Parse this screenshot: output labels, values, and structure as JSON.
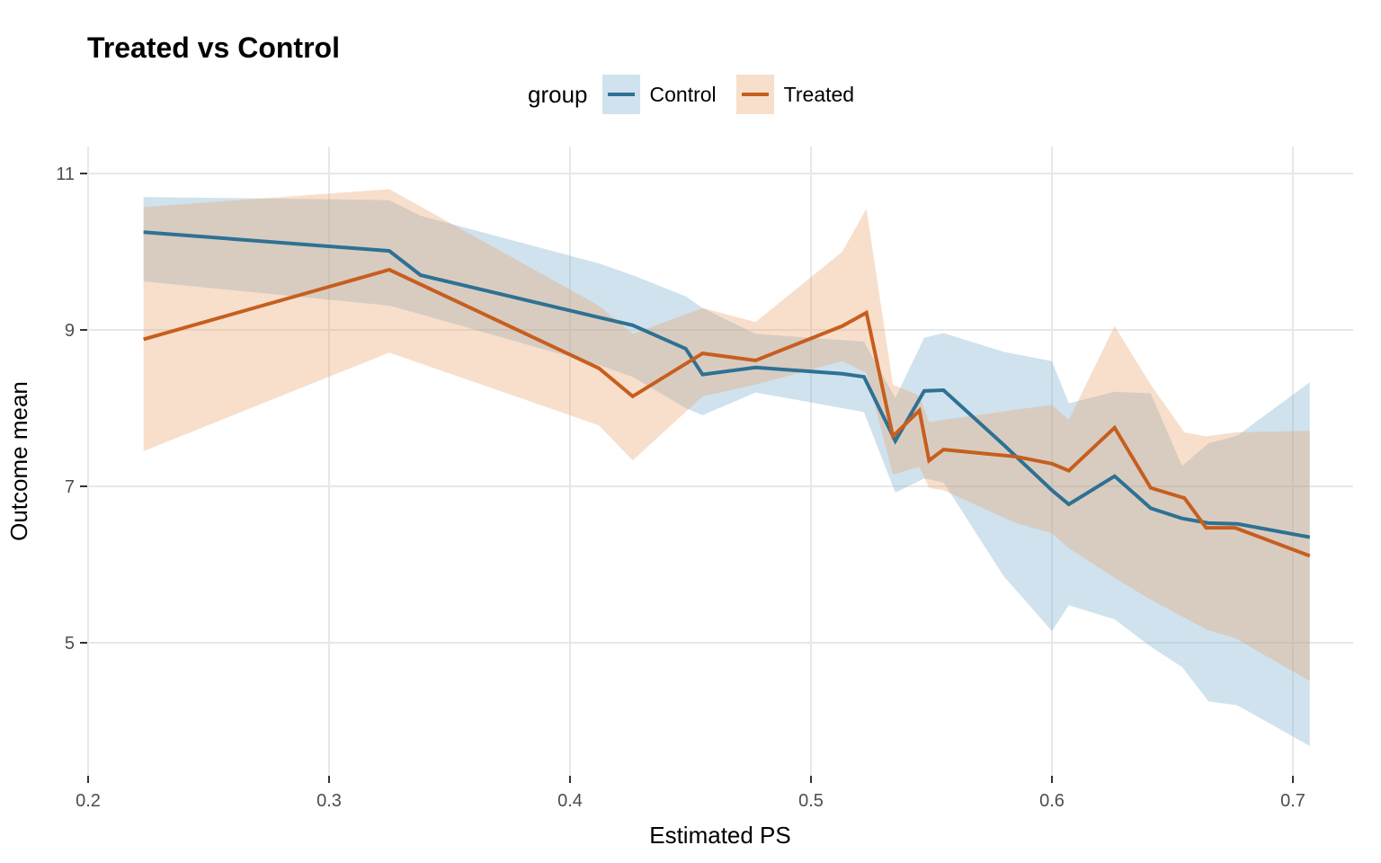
{
  "title": "Treated vs Control",
  "legend": {
    "title": "group",
    "items": [
      {
        "label": "Control"
      },
      {
        "label": "Treated"
      }
    ]
  },
  "colors": {
    "control_line": "#2E7193",
    "treated_line": "#C75E1E",
    "control_fill": "rgba(117,171,206,0.35)",
    "treated_fill": "rgba(231,163,109,0.35)",
    "grid": "#E8E8E8",
    "tick_text": "#4D4D4D",
    "tick_mark": "#333333",
    "axis_text": "#000000"
  },
  "chart_data": {
    "type": "line",
    "title": "Treated vs Control",
    "xlabel": "Estimated PS",
    "ylabel": "Outcome mean",
    "legend_title": "group",
    "legend_position": "top-center",
    "grid": "major-only",
    "xlim": [
      0.1996,
      0.725
    ],
    "ylim": [
      3.3,
      11.34
    ],
    "x_ticks": [
      0.2,
      0.3,
      0.4,
      0.5,
      0.6,
      0.7
    ],
    "x_tick_labels": [
      "0.2",
      "0.3",
      "0.4",
      "0.5",
      "0.6",
      "0.7"
    ],
    "y_ticks": [
      5,
      7,
      9,
      11
    ],
    "y_tick_labels": [
      "5",
      "7",
      "9",
      "11"
    ],
    "series": [
      {
        "name": "Control",
        "geom": "line+ribbon",
        "x": [
          0.223,
          0.325,
          0.338,
          0.412,
          0.426,
          0.448,
          0.455,
          0.477,
          0.513,
          0.522,
          0.535,
          0.547,
          0.555,
          0.58,
          0.6,
          0.607,
          0.626,
          0.641,
          0.654,
          0.665,
          0.677,
          0.707
        ],
        "y": [
          10.25,
          10.01,
          9.7,
          9.16,
          9.06,
          8.76,
          8.43,
          8.52,
          8.44,
          8.4,
          7.58,
          8.22,
          8.23,
          7.53,
          6.95,
          6.77,
          7.13,
          6.72,
          6.59,
          6.53,
          6.52,
          6.35
        ],
        "ribbon_lo": [
          9.62,
          9.31,
          9.2,
          8.55,
          8.4,
          8.0,
          7.91,
          8.2,
          8.0,
          7.95,
          6.92,
          7.1,
          7.05,
          5.85,
          5.15,
          5.48,
          5.3,
          4.95,
          4.69,
          4.25,
          4.2,
          3.68
        ],
        "ribbon_hi": [
          10.7,
          10.66,
          10.46,
          9.85,
          9.7,
          9.43,
          9.28,
          8.95,
          8.87,
          8.85,
          8.13,
          8.9,
          8.96,
          8.72,
          8.6,
          8.06,
          8.21,
          8.19,
          7.26,
          7.55,
          7.65,
          8.33
        ]
      },
      {
        "name": "Treated",
        "geom": "line+ribbon",
        "x": [
          0.223,
          0.325,
          0.412,
          0.426,
          0.455,
          0.477,
          0.513,
          0.523,
          0.534,
          0.545,
          0.549,
          0.555,
          0.585,
          0.6,
          0.607,
          0.626,
          0.641,
          0.655,
          0.664,
          0.676,
          0.707
        ],
        "y": [
          8.88,
          9.77,
          8.51,
          8.15,
          8.7,
          8.61,
          9.05,
          9.22,
          7.64,
          7.97,
          7.33,
          7.47,
          7.38,
          7.29,
          7.2,
          7.75,
          6.98,
          6.85,
          6.47,
          6.47,
          6.11
        ],
        "ribbon_lo": [
          7.45,
          8.71,
          7.78,
          7.33,
          8.15,
          8.3,
          8.6,
          8.45,
          7.15,
          7.25,
          6.98,
          6.95,
          6.53,
          6.4,
          6.21,
          5.83,
          5.55,
          5.32,
          5.17,
          5.06,
          4.51
        ],
        "ribbon_hi": [
          10.57,
          10.8,
          9.31,
          8.95,
          9.28,
          9.1,
          10.0,
          10.55,
          8.3,
          8.16,
          7.82,
          7.85,
          7.98,
          8.04,
          7.85,
          9.05,
          8.3,
          7.69,
          7.64,
          7.69,
          7.71
        ]
      }
    ]
  }
}
